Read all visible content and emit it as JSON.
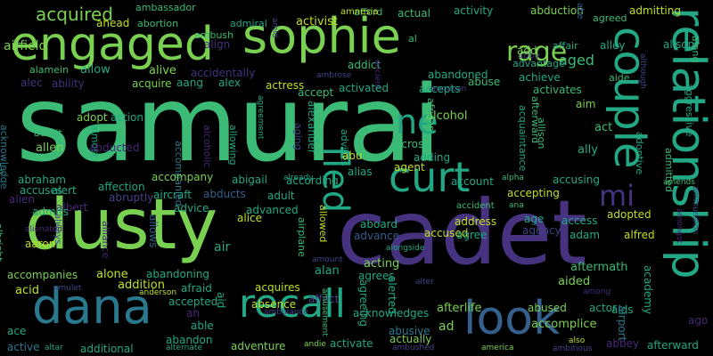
{
  "background_color": "#000000",
  "palette": {
    "yellow_green": "#c2df23",
    "light_green": "#7ad151",
    "green": "#3bbb75",
    "teal": "#22a884",
    "teal_blue": "#2a788e",
    "blue": "#355f8d",
    "indigo": "#414487",
    "purple": "#46327e",
    "dark_purple": "#482878",
    "yellow": "#fde725"
  },
  "words": [
    {
      "text": "samurai"
    },
    {
      "text": "cadet"
    },
    {
      "text": "dusty"
    },
    {
      "text": "engaged"
    },
    {
      "text": "sophie"
    },
    {
      "text": "relationship"
    },
    {
      "text": "couple"
    },
    {
      "text": "dana"
    },
    {
      "text": "recall"
    },
    {
      "text": "look"
    },
    {
      "text": "curt"
    },
    {
      "text": "fled"
    },
    {
      "text": "ne"
    },
    {
      "text": "rage"
    },
    {
      "text": "mi"
    },
    {
      "text": "acquired"
    },
    {
      "text": "airfield"
    },
    {
      "text": "ahead"
    },
    {
      "text": "abortion"
    },
    {
      "text": "admiral"
    },
    {
      "text": "activist"
    },
    {
      "text": "afford"
    },
    {
      "text": "activity"
    },
    {
      "text": "abduction"
    },
    {
      "text": "admitting"
    },
    {
      "text": "agreed"
    },
    {
      "text": "alison"
    },
    {
      "text": "alley"
    },
    {
      "text": "affair"
    },
    {
      "text": "aged"
    },
    {
      "text": "abby"
    },
    {
      "text": "add"
    },
    {
      "text": "advantage"
    },
    {
      "text": "actual"
    },
    {
      "text": "al"
    },
    {
      "text": "align"
    },
    {
      "text": "ambush"
    },
    {
      "text": "ambassador"
    },
    {
      "text": "amnesia"
    },
    {
      "text": "abe"
    },
    {
      "text": "alamein"
    },
    {
      "text": "allow"
    },
    {
      "text": "alive"
    },
    {
      "text": "accidentally"
    },
    {
      "text": "addict"
    },
    {
      "text": "ancient"
    },
    {
      "text": "ambrose"
    },
    {
      "text": "alec"
    },
    {
      "text": "ability"
    },
    {
      "text": "acquire"
    },
    {
      "text": "aang"
    },
    {
      "text": "alex"
    },
    {
      "text": "actress"
    },
    {
      "text": "accept"
    },
    {
      "text": "abandoned"
    },
    {
      "text": "abuse"
    },
    {
      "text": "achieve"
    },
    {
      "text": "aide"
    },
    {
      "text": "american"
    },
    {
      "text": "activated"
    },
    {
      "text": "accepts"
    },
    {
      "text": "activates"
    },
    {
      "text": "afterward"
    },
    {
      "text": "adopt"
    },
    {
      "text": "action"
    },
    {
      "text": "alexander"
    },
    {
      "text": "aim"
    },
    {
      "text": "alcohol"
    },
    {
      "text": "act"
    },
    {
      "text": "acknowledge"
    },
    {
      "text": "allen"
    },
    {
      "text": "admit"
    },
    {
      "text": "almost"
    },
    {
      "text": "accompanied"
    },
    {
      "text": "alcoholic"
    },
    {
      "text": "allowing"
    },
    {
      "text": "aging"
    },
    {
      "text": "advises"
    },
    {
      "text": "across"
    },
    {
      "text": "adding"
    },
    {
      "text": "abu"
    },
    {
      "text": "agent"
    },
    {
      "text": "african"
    },
    {
      "text": "acquaintance"
    },
    {
      "text": "allison"
    },
    {
      "text": "ally"
    },
    {
      "text": "adoptive"
    },
    {
      "text": "admitted"
    },
    {
      "text": "aggressive"
    },
    {
      "text": "abducted"
    },
    {
      "text": "abraham"
    },
    {
      "text": "affection"
    },
    {
      "text": "accompany"
    },
    {
      "text": "abigail"
    },
    {
      "text": "according"
    },
    {
      "text": "alias"
    },
    {
      "text": "account"
    },
    {
      "text": "accusing"
    },
    {
      "text": "alpha"
    },
    {
      "text": "already"
    },
    {
      "text": "amends"
    },
    {
      "text": "ammunition"
    },
    {
      "text": "ali"
    },
    {
      "text": "accuses"
    },
    {
      "text": "alert"
    },
    {
      "text": "abruptly"
    },
    {
      "text": "aircraft"
    },
    {
      "text": "abducts"
    },
    {
      "text": "adult"
    },
    {
      "text": "accepting"
    },
    {
      "text": "accident"
    },
    {
      "text": "ana"
    },
    {
      "text": "adopted"
    },
    {
      "text": "alien"
    },
    {
      "text": "albert"
    },
    {
      "text": "advice"
    },
    {
      "text": "advanced"
    },
    {
      "text": "allowed"
    },
    {
      "text": "aboard"
    },
    {
      "text": "address"
    },
    {
      "text": "age"
    },
    {
      "text": "access"
    },
    {
      "text": "alfred"
    },
    {
      "text": "amongst"
    },
    {
      "text": "admits"
    },
    {
      "text": "allows"
    },
    {
      "text": "alice"
    },
    {
      "text": "air"
    },
    {
      "text": "airplane"
    },
    {
      "text": "advance"
    },
    {
      "text": "accused"
    },
    {
      "text": "agree"
    },
    {
      "text": "agency"
    },
    {
      "text": "adam"
    },
    {
      "text": "albright"
    },
    {
      "text": "always"
    },
    {
      "text": "alliance"
    },
    {
      "text": "aaron"
    },
    {
      "text": "alongside"
    },
    {
      "text": "amount"
    },
    {
      "text": "acting"
    },
    {
      "text": "alan"
    },
    {
      "text": "aftermath"
    },
    {
      "text": "academy"
    },
    {
      "text": "accompanies"
    },
    {
      "text": "alone"
    },
    {
      "text": "abandoning"
    },
    {
      "text": "agrees"
    },
    {
      "text": "aided"
    },
    {
      "text": "acid"
    },
    {
      "text": "amulet"
    },
    {
      "text": "addition"
    },
    {
      "text": "afraid"
    },
    {
      "text": "acquires"
    },
    {
      "text": "agreeing"
    },
    {
      "text": "alerted"
    },
    {
      "text": "alter"
    },
    {
      "text": "among"
    },
    {
      "text": "anderson"
    },
    {
      "text": "accepted"
    },
    {
      "text": "affect"
    },
    {
      "text": "absence"
    },
    {
      "text": "aid"
    },
    {
      "text": "aids"
    },
    {
      "text": "afterlife"
    },
    {
      "text": "abused"
    },
    {
      "text": "actor"
    },
    {
      "text": "ambulance"
    },
    {
      "text": "ah"
    },
    {
      "text": "acknowledges"
    },
    {
      "text": "ago"
    },
    {
      "text": "ace"
    },
    {
      "text": "able"
    },
    {
      "text": "accomplice"
    },
    {
      "text": "airport"
    },
    {
      "text": "active"
    },
    {
      "text": "abandon"
    },
    {
      "text": "abusive"
    },
    {
      "text": "ad"
    },
    {
      "text": "adventure"
    },
    {
      "text": "activate"
    },
    {
      "text": "actually"
    },
    {
      "text": "abbey"
    },
    {
      "text": "altar"
    },
    {
      "text": "additional"
    },
    {
      "text": "alternate"
    },
    {
      "text": "andie"
    },
    {
      "text": "america"
    },
    {
      "text": "ambushed"
    },
    {
      "text": "ambitious"
    },
    {
      "text": "also"
    },
    {
      "text": "afterward"
    },
    {
      "text": "alienated"
    },
    {
      "text": "amid"
    },
    {
      "text": "although"
    },
    {
      "text": "agreement"
    },
    {
      "text": "amusement"
    },
    {
      "text": "along"
    }
  ]
}
